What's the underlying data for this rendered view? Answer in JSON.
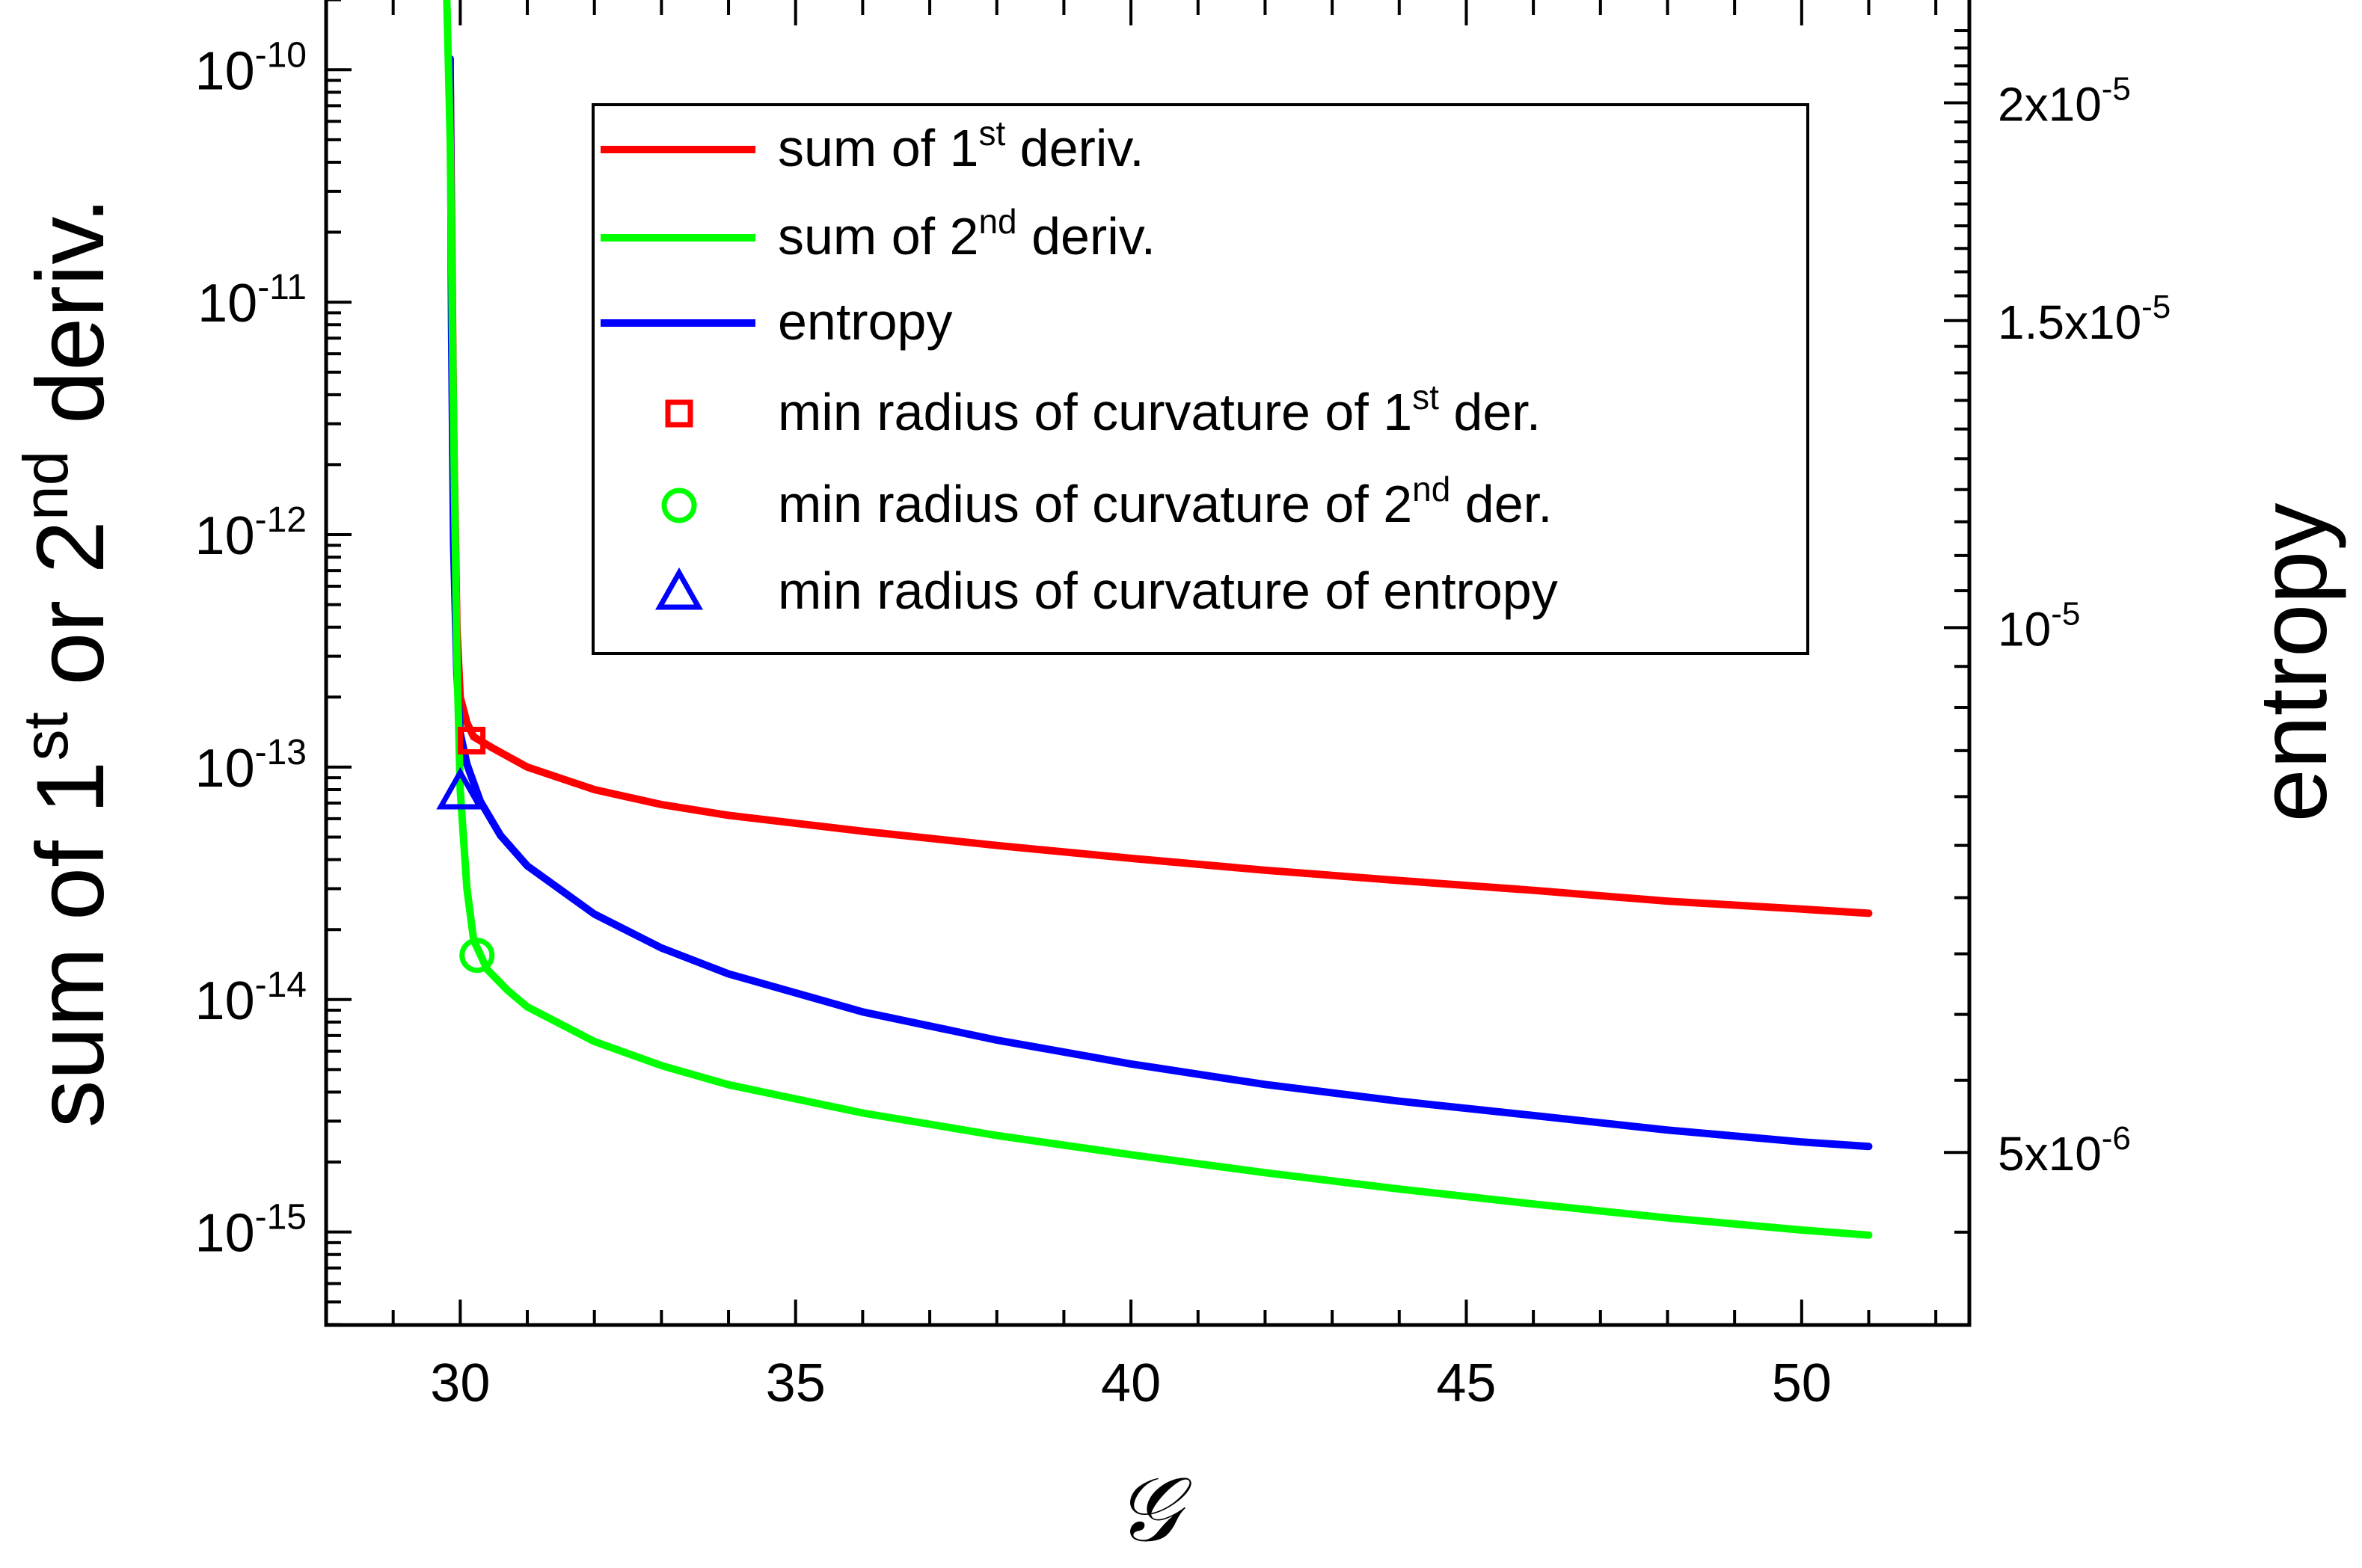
{
  "chart_data": {
    "type": "line",
    "xlabel": "𝒢",
    "ylabel_left": {
      "pre": "sum of 1",
      "sup1": "st",
      "mid": " or 2",
      "sup2": "nd",
      "post": " deriv."
    },
    "ylabel_right": "entropy",
    "x_ticks": [
      "30",
      "35",
      "40",
      "45",
      "50"
    ],
    "left_ticks": [
      {
        "base": "10",
        "exp": "-10"
      },
      {
        "base": "10",
        "exp": "-11"
      },
      {
        "base": "10",
        "exp": "-12"
      },
      {
        "base": "10",
        "exp": "-13"
      },
      {
        "base": "10",
        "exp": "-14"
      },
      {
        "base": "10",
        "exp": "-15"
      }
    ],
    "right_ticks": [
      {
        "base": "2x10",
        "exp": "-5"
      },
      {
        "base": "1.5x10",
        "exp": "-5"
      },
      {
        "base": "10",
        "exp": "-5"
      },
      {
        "base": "5x10",
        "exp": "-6"
      }
    ],
    "xlim": [
      28,
      52.5
    ],
    "ylim_left_log10": [
      -15.4,
      -9.7
    ],
    "ylim_right_log10": [
      -5.4,
      -4.64
    ],
    "legend_position": "top-right",
    "series": [
      {
        "name": "sum of 1st deriv.",
        "color": "#ff0000",
        "axis": "left",
        "x": [
          29.85,
          29.9,
          29.95,
          30.0,
          30.1,
          30.2,
          30.5,
          31,
          32,
          33,
          34,
          36,
          38,
          40,
          42,
          44,
          46,
          48,
          50,
          51
        ],
        "y": [
          1e-10,
          3e-12,
          4e-13,
          2e-13,
          1.55e-13,
          1.35e-13,
          1.2e-13,
          1e-13,
          8e-14,
          6.9e-14,
          6.2e-14,
          5.3e-14,
          4.6e-14,
          4.05e-14,
          3.6e-14,
          3.25e-14,
          2.95e-14,
          2.65e-14,
          2.45e-14,
          2.35e-14
        ]
      },
      {
        "name": "sum of 2nd deriv.",
        "color": "#00ff00",
        "axis": "left",
        "x": [
          29.8,
          29.85,
          29.9,
          29.95,
          30.0,
          30.1,
          30.2,
          30.4,
          30.7,
          31,
          32,
          33,
          34,
          36,
          38,
          40,
          42,
          44,
          46,
          48,
          50,
          51
        ],
        "y": [
          2e-10,
          5e-11,
          3e-12,
          3e-13,
          8e-14,
          3e-14,
          1.8e-14,
          1.35e-14,
          1.1e-14,
          9.3e-15,
          6.6e-15,
          5.2e-15,
          4.3e-15,
          3.25e-15,
          2.6e-15,
          2.15e-15,
          1.8e-15,
          1.53e-15,
          1.32e-15,
          1.15e-15,
          1.02e-15,
          9.7e-16
        ]
      },
      {
        "name": "entropy",
        "color": "#0000ff",
        "axis": "right",
        "x": [
          29.85,
          29.87,
          29.9,
          29.95,
          30.0,
          30.1,
          30.3,
          30.6,
          31,
          32,
          33,
          34,
          36,
          38,
          40,
          42,
          44,
          46,
          48,
          50,
          51
        ],
        "y": [
          2.12e-05,
          1.5e-05,
          1.12e-05,
          9.4e-06,
          8.7e-06,
          8.35e-06,
          7.95e-06,
          7.6e-06,
          7.3e-06,
          6.85e-06,
          6.55e-06,
          6.33e-06,
          6.02e-06,
          5.8e-06,
          5.62e-06,
          5.47e-06,
          5.35e-06,
          5.25e-06,
          5.15e-06,
          5.07e-06,
          5.04e-06
        ]
      }
    ],
    "markers": [
      {
        "name": "min radius of curvature of 1st der.",
        "shape": "square",
        "color": "#ff0000",
        "axis": "left",
        "x": 30.17,
        "y": 1.3e-13
      },
      {
        "name": "min radius of curvature of 2nd der.",
        "shape": "circle",
        "color": "#00ff00",
        "axis": "left",
        "x": 30.25,
        "y": 1.55e-14
      },
      {
        "name": "min radius of curvature of entropy",
        "shape": "triangle",
        "color": "#0000ff",
        "axis": "right",
        "x": 30.0,
        "y": 8.05e-06
      }
    ],
    "legend": [
      {
        "kind": "line",
        "color": "#ff0000",
        "pre": "sum of 1",
        "sup": "st",
        "post": " deriv."
      },
      {
        "kind": "line",
        "color": "#00ff00",
        "pre": "sum of 2",
        "sup": "nd",
        "post": " deriv."
      },
      {
        "kind": "line",
        "color": "#0000ff",
        "pre": "entropy",
        "sup": "",
        "post": ""
      },
      {
        "kind": "square",
        "color": "#ff0000",
        "pre": "min radius of curvature of 1",
        "sup": "st",
        "post": " der."
      },
      {
        "kind": "circle",
        "color": "#00ff00",
        "pre": "min radius of curvature of 2",
        "sup": "nd",
        "post": " der."
      },
      {
        "kind": "triangle",
        "color": "#0000ff",
        "pre": "min radius of curvature of entropy",
        "sup": "",
        "post": ""
      }
    ]
  }
}
